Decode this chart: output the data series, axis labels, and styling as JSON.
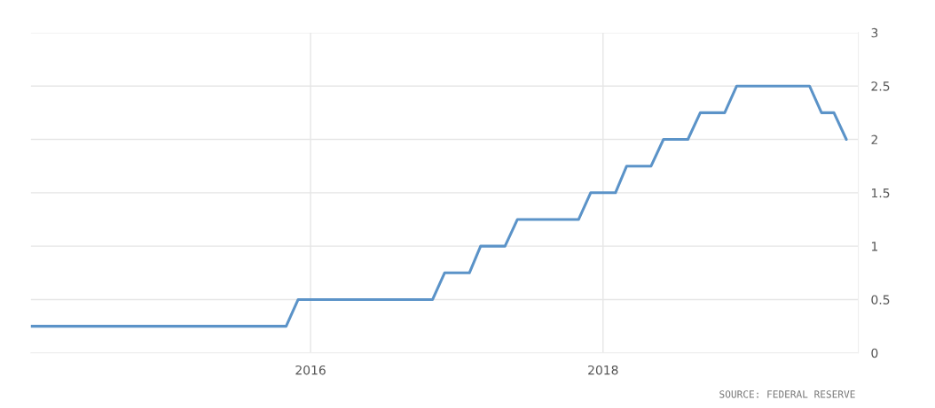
{
  "chart_data": {
    "type": "line",
    "x": [
      "2014-02",
      "2015-11",
      "2015-12",
      "2016-11",
      "2016-12",
      "2017-02",
      "2017-03",
      "2017-05",
      "2017-06",
      "2017-11",
      "2017-12",
      "2018-02",
      "2018-03",
      "2018-05",
      "2018-06",
      "2018-08",
      "2018-09",
      "2018-11",
      "2018-12",
      "2019-06",
      "2019-07",
      "2019-08",
      "2019-09"
    ],
    "series": [
      {
        "color": "#5b93c8",
        "values": [
          0.25,
          0.25,
          0.5,
          0.5,
          0.75,
          0.75,
          1,
          1,
          1.25,
          1.25,
          1.5,
          1.5,
          1.75,
          1.75,
          2,
          2,
          2.25,
          2.25,
          2.5,
          2.5,
          2.25,
          2.25,
          2.0
        ]
      }
    ],
    "xlim": [
      "2014-02",
      "2019-10"
    ],
    "xticks": [
      "2016",
      "2018"
    ],
    "ylim": [
      0,
      3
    ],
    "yticks": [
      0,
      0.5,
      1,
      1.5,
      2,
      2.5,
      3
    ],
    "grid": true,
    "legend": false,
    "marker": "none",
    "line_style": "solid",
    "annotations": [
      "SOURCE: FEDERAL RESERVE"
    ]
  }
}
